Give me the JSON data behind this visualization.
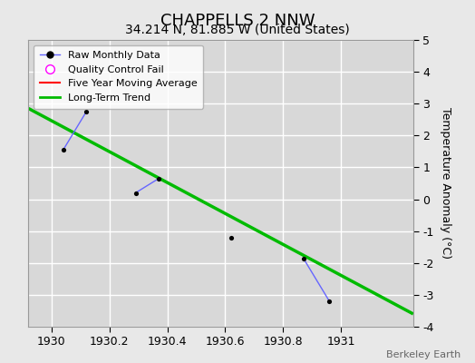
{
  "title": "CHAPPELLS 2 NNW",
  "subtitle": "34.214 N, 81.885 W (United States)",
  "ylabel": "Temperature Anomaly (°C)",
  "watermark": "Berkeley Earth",
  "xlim": [
    1929.92,
    1931.25
  ],
  "ylim": [
    -4,
    5
  ],
  "yticks": [
    -4,
    -3,
    -2,
    -1,
    0,
    1,
    2,
    3,
    4,
    5
  ],
  "xticks": [
    1930,
    1930.2,
    1930.4,
    1930.6,
    1930.8,
    1931
  ],
  "background_color": "#e8e8e8",
  "plot_bg_color": "#d8d8d8",
  "grid_color": "#ffffff",
  "raw_data_x": [
    1930.04,
    1930.12,
    1930.29,
    1930.37,
    1930.62,
    1930.87,
    1930.96
  ],
  "raw_data_y": [
    1.55,
    2.75,
    0.2,
    0.65,
    -1.2,
    -1.85,
    -3.2
  ],
  "raw_line_color": "#6666ff",
  "raw_marker_color": "#000000",
  "trend_x": [
    1929.92,
    1931.25
  ],
  "trend_y": [
    2.85,
    -3.6
  ],
  "trend_color": "#00bb00",
  "trend_linewidth": 2.5,
  "title_fontsize": 13,
  "subtitle_fontsize": 10,
  "ylabel_fontsize": 9,
  "tick_fontsize": 9,
  "legend_fontsize": 8
}
